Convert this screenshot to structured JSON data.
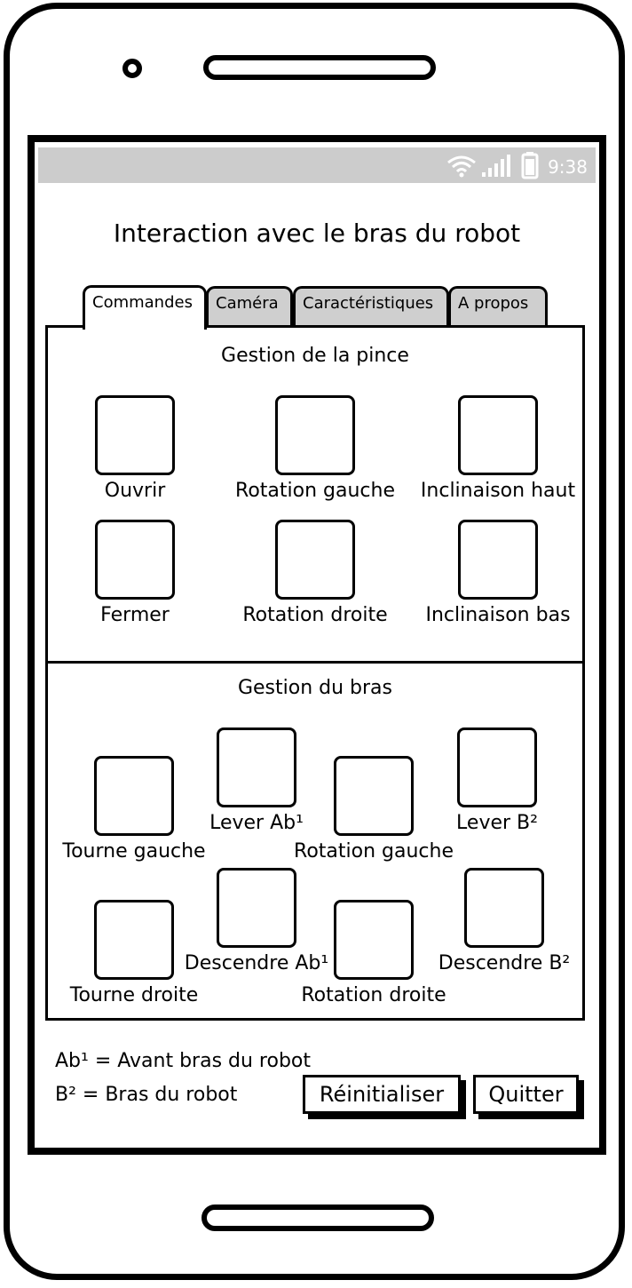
{
  "status_bar": {
    "time": "9:38"
  },
  "app_title": "Interaction avec le bras du robot",
  "tabs": [
    {
      "label": "Commandes"
    },
    {
      "label": "Caméra"
    },
    {
      "label": "Caractéristiques"
    },
    {
      "label": "A propos"
    }
  ],
  "gripper": {
    "title": "Gestion de la pince",
    "buttons": [
      {
        "label": "Ouvrir"
      },
      {
        "label": "Rotation gauche"
      },
      {
        "label": "Inclinaison haut"
      },
      {
        "label": "Fermer"
      },
      {
        "label": "Rotation droite"
      },
      {
        "label": "Inclinaison bas"
      }
    ]
  },
  "arm": {
    "title": "Gestion du bras",
    "buttons": [
      {
        "label": "Tourne gauche"
      },
      {
        "label": "Lever Ab¹"
      },
      {
        "label": "Rotation gauche"
      },
      {
        "label": "Lever B²"
      },
      {
        "label": "Tourne droite"
      },
      {
        "label": "Descendre Ab¹"
      },
      {
        "label": "Rotation droite"
      },
      {
        "label": "Descendre B²"
      }
    ]
  },
  "legend": {
    "line1": "Ab¹ = Avant bras du robot",
    "line2": "B² = Bras du robot"
  },
  "actions": {
    "reset_label": "Réinitialiser",
    "quit_label": "Quitter"
  }
}
